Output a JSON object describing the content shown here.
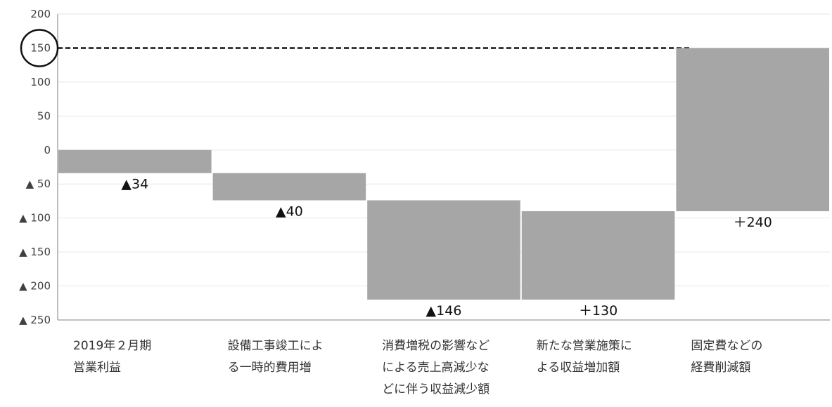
{
  "chart_data": {
    "type": "waterfall",
    "ylim": [
      -250,
      200
    ],
    "ytick_values": [
      200,
      150,
      100,
      50,
      0,
      -50,
      -100,
      -150,
      -200,
      -250
    ],
    "ytick_labels": [
      "200",
      "150",
      "100",
      "50",
      "0",
      "▲ 50",
      "▲ 100",
      "▲ 150",
      "▲ 200",
      "▲ 250"
    ],
    "highlighted_tick": "150",
    "reference_line": 150,
    "grid": "horizontal",
    "categories": [
      "2019年２月期\n営業利益",
      "設備工事竣工によ\nる一時的費用増",
      "消費増税の影響など\nによる売上高減少な\nどに伴う収益減少額",
      "新たな営業施策に\nよる収益増加額",
      "固定費などの\n経費削減額"
    ],
    "bars": [
      {
        "base": 0,
        "value": -34,
        "label": "▲34"
      },
      {
        "base": -34,
        "value": -40,
        "label": "▲40"
      },
      {
        "base": -74,
        "value": -146,
        "label": "▲146"
      },
      {
        "base": -220,
        "value": 130,
        "label": "＋130"
      },
      {
        "base": -90,
        "value": 240,
        "label": "＋240"
      }
    ],
    "bar_color": "#a6a6a6"
  }
}
